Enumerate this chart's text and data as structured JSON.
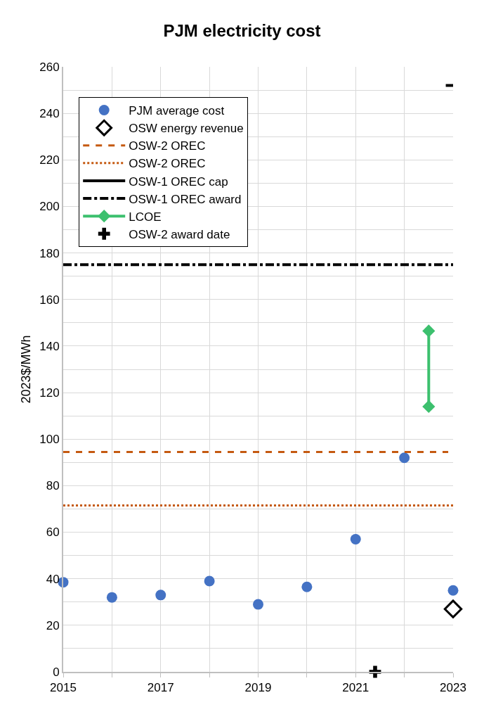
{
  "chart_data": {
    "type": "scatter",
    "title": "PJM electricity cost",
    "ylabel": "2023$/MWh",
    "xlim": [
      2015,
      2023
    ],
    "xticks": [
      2015,
      {
        "value": 2016,
        "label": null
      },
      2017,
      {
        "value": 2018,
        "label": null
      },
      2019,
      {
        "value": 2020,
        "label": null
      },
      2021,
      {
        "value": 2022,
        "label": null
      },
      2023
    ],
    "ylim": [
      0,
      260
    ],
    "yticks": [
      0,
      {
        "value": 10,
        "label": null
      },
      20,
      {
        "value": 30,
        "label": null
      },
      40,
      {
        "value": 50,
        "label": null
      },
      60,
      {
        "value": 70,
        "label": null
      },
      80,
      {
        "value": 90,
        "label": null
      },
      100,
      {
        "value": 110,
        "label": null
      },
      120,
      {
        "value": 130,
        "label": null
      },
      140,
      {
        "value": 150,
        "label": null
      },
      160,
      {
        "value": 170,
        "label": null
      },
      180,
      {
        "value": 190,
        "label": null
      },
      200,
      {
        "value": 210,
        "label": null
      },
      220,
      {
        "value": 230,
        "label": null
      },
      240,
      {
        "value": 250,
        "label": null
      },
      260
    ],
    "grid": true,
    "legend": "top left",
    "series": [
      {
        "name": "PJM average cost",
        "marker": "circle",
        "color": "#4472c4",
        "x": [
          2015,
          2016,
          2017,
          2018,
          2019,
          2020,
          2021,
          2022,
          2023
        ],
        "values": [
          38.5,
          32,
          33,
          39,
          29,
          36.5,
          57,
          92,
          35
        ]
      },
      {
        "name": "OSW energy revenue",
        "marker": "diamond",
        "color": "#000000",
        "x": [
          2023
        ],
        "values": [
          27
        ]
      },
      {
        "name": "OSW-2 OREC",
        "type": "line",
        "line_style": "dashed",
        "marker": "none",
        "color": "#c55a11",
        "x": [
          2015,
          2022.9
        ],
        "values": [
          94.5,
          94.5
        ]
      },
      {
        "name": "OSW-2 OREC",
        "type": "line",
        "line_style": "dotted",
        "marker": "none",
        "color": "#c55a11",
        "x": [
          2015,
          2023
        ],
        "values": [
          71.5,
          71.5
        ]
      },
      {
        "name": "OSW-1 OREC cap",
        "type": "line",
        "line_style": "solid",
        "marker": "none",
        "color": "#000000",
        "x": [
          2022.85,
          2023
        ],
        "values": [
          252,
          252
        ]
      },
      {
        "name": "OSW-1 OREC award",
        "type": "line",
        "line_style": "dashdot",
        "marker": "none",
        "color": "#000000",
        "x": [
          2015,
          2023
        ],
        "values": [
          175,
          175
        ]
      },
      {
        "name": "LCOE",
        "type": "line",
        "line_style": "solid",
        "marker": "diamond",
        "color": "#3cc06e",
        "x": [
          2022.5,
          2022.5
        ],
        "values": [
          114,
          146.5
        ]
      },
      {
        "name": "OSW-2 award date",
        "marker": "cross",
        "color": "#000000",
        "x": [
          2021.4
        ],
        "values": [
          0
        ]
      }
    ]
  }
}
